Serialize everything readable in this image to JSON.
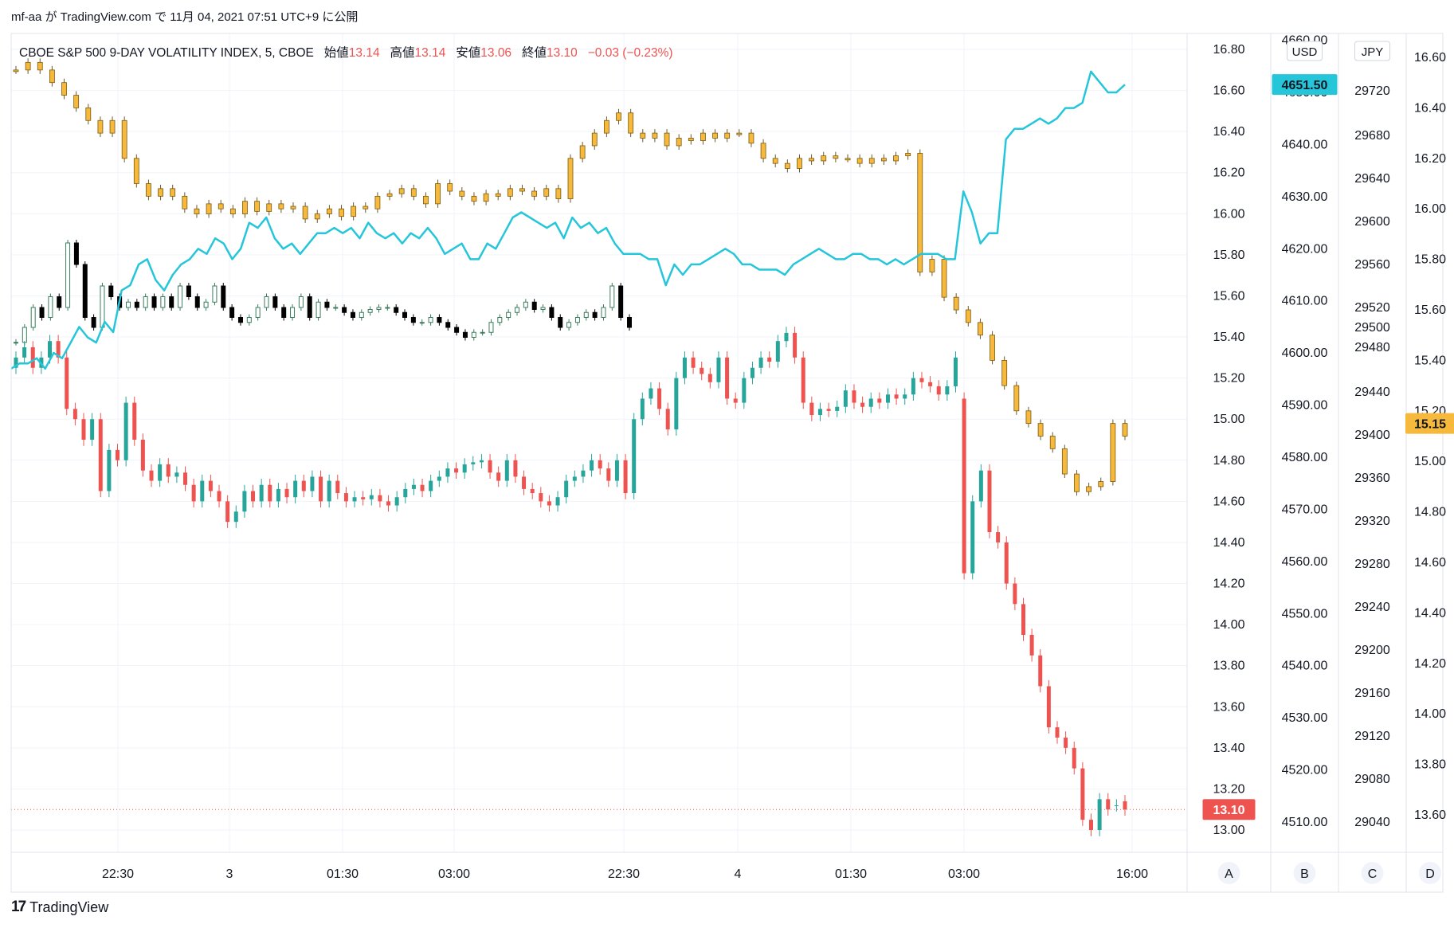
{
  "attribution": "mf-aa が TradingView.com で 11月 04, 2021 07:51 UTC+9 に公開",
  "legend": {
    "title": "CBOE S&P 500 9-DAY VOLATILITY INDEX, 5, CBOE",
    "open_label": "始値",
    "open_value": "13.14",
    "high_label": "高値",
    "high_value": "13.14",
    "low_label": "安値",
    "low_value": "13.06",
    "close_label": "終値",
    "close_value": "13.10",
    "change": "−0.03 (−0.23%)"
  },
  "footer": {
    "logo_mark": "17",
    "logo_text": "TradingView"
  },
  "chart_data": {
    "type": "candlestick+line",
    "x_ticks": [
      "22:30",
      "3",
      "01:30",
      "03:00",
      "22:30",
      "4",
      "01:30",
      "03:00",
      "16:00"
    ],
    "scale_labels": [
      "A",
      "B",
      "C",
      "D"
    ],
    "scales": {
      "A": {
        "range": [
          12.95,
          16.9
        ],
        "ticks": [
          "16.80",
          "16.60",
          "16.40",
          "16.20",
          "16.00",
          "15.80",
          "15.60",
          "15.40",
          "15.20",
          "15.00",
          "14.80",
          "14.60",
          "14.40",
          "14.20",
          "14.00",
          "13.80",
          "13.60",
          "13.40",
          "13.20",
          "13.00"
        ],
        "last_value": "13.10",
        "last_color": "#ef5350"
      },
      "B": {
        "currency": "USD",
        "range": [
          4507.5,
          4661
        ],
        "ticks": [
          "4660.00",
          "4650.00",
          "4640.00",
          "4630.00",
          "4620.00",
          "4610.00",
          "4600.00",
          "4590.00",
          "4580.00",
          "4570.00",
          "4560.00",
          "4550.00",
          "4540.00",
          "4530.00",
          "4520.00",
          "4510.00"
        ],
        "last_value": "4651.50",
        "last_color": "#26c6da"
      },
      "C": {
        "currency": "JPY",
        "ticks": [
          "29720",
          "29680",
          "29640",
          "29600",
          "29560",
          "29520",
          "29500",
          "29480",
          "29440",
          "29400",
          "29360",
          "29320",
          "29280",
          "29240",
          "29200",
          "29160",
          "29120",
          "29080",
          "29040"
        ]
      },
      "D": {
        "range": [
          13.45,
          16.7
        ],
        "ticks": [
          "16.60",
          "16.40",
          "16.20",
          "16.00",
          "15.80",
          "15.60",
          "15.40",
          "15.20",
          "15.00",
          "14.80",
          "14.60",
          "14.40",
          "14.20",
          "14.00",
          "13.80",
          "13.60"
        ],
        "last_value": "15.15",
        "last_color": "#f6b93b"
      }
    },
    "series": [
      {
        "name": "CBOE S&P 500 9-DAY VOLATILITY INDEX, 5, CBOE",
        "style": "candles",
        "scale": "A",
        "up_color": "#26a69a",
        "down_color": "#ef5350",
        "close": [
          15.3,
          15.35,
          15.25,
          15.3,
          15.38,
          15.3,
          15.05,
          15.0,
          14.9,
          15.0,
          14.65,
          14.85,
          14.8,
          15.08,
          14.9,
          14.75,
          14.7,
          14.78,
          14.72,
          14.74,
          14.68,
          14.6,
          14.7,
          14.65,
          14.6,
          14.5,
          14.55,
          14.65,
          14.6,
          14.68,
          14.6,
          14.66,
          14.62,
          14.7,
          14.65,
          14.72,
          14.6,
          14.7,
          14.64,
          14.6,
          14.62,
          14.61,
          14.63,
          14.6,
          14.58,
          14.62,
          14.66,
          14.68,
          14.65,
          14.7,
          14.72,
          14.76,
          14.74,
          14.78,
          14.79,
          14.8,
          14.74,
          14.7,
          14.8,
          14.72,
          14.66,
          14.64,
          14.6,
          14.58,
          14.62,
          14.7,
          14.72,
          14.75,
          14.8,
          14.76,
          14.7,
          14.8,
          14.64,
          15.0,
          15.1,
          15.15,
          15.05,
          14.95,
          15.2,
          15.3,
          15.25,
          15.22,
          15.18,
          15.3,
          15.1,
          15.08,
          15.2,
          15.25,
          15.3,
          15.28,
          15.38,
          15.42,
          15.3,
          15.08,
          15.02,
          15.05,
          15.04,
          15.06,
          15.14,
          15.08,
          15.06,
          15.1,
          15.08,
          15.12,
          15.1,
          15.12,
          15.2,
          15.18,
          15.16,
          15.12,
          15.16,
          15.3,
          14.25,
          14.6,
          14.75,
          14.45,
          14.4,
          14.2,
          14.1,
          13.95,
          13.85,
          13.7,
          13.5,
          13.45,
          13.4,
          13.3,
          13.05,
          13.0,
          13.15,
          13.1,
          13.12,
          13.1
        ],
        "open": [
          15.25,
          15.3,
          15.35,
          15.25,
          15.3,
          15.38,
          15.3,
          15.05,
          15.0,
          14.9,
          15.0,
          14.65,
          14.85,
          14.8,
          15.08,
          14.9,
          14.75,
          14.7,
          14.78,
          14.72,
          14.74,
          14.68,
          14.6,
          14.7,
          14.65,
          14.6,
          14.5,
          14.55,
          14.65,
          14.6,
          14.68,
          14.6,
          14.66,
          14.62,
          14.7,
          14.65,
          14.72,
          14.6,
          14.7,
          14.64,
          14.6,
          14.62,
          14.61,
          14.63,
          14.6,
          14.58,
          14.62,
          14.66,
          14.68,
          14.65,
          14.7,
          14.72,
          14.76,
          14.74,
          14.78,
          14.79,
          14.8,
          14.74,
          14.7,
          14.8,
          14.72,
          14.66,
          14.64,
          14.6,
          14.58,
          14.62,
          14.7,
          14.72,
          14.75,
          14.8,
          14.76,
          14.7,
          14.8,
          14.64,
          15.0,
          15.1,
          15.15,
          15.05,
          14.95,
          15.2,
          15.3,
          15.25,
          15.22,
          15.18,
          15.3,
          15.1,
          15.08,
          15.2,
          15.25,
          15.3,
          15.28,
          15.38,
          15.42,
          15.3,
          15.08,
          15.02,
          15.05,
          15.04,
          15.06,
          15.14,
          15.08,
          15.06,
          15.1,
          15.08,
          15.12,
          15.1,
          15.12,
          15.2,
          15.18,
          15.16,
          15.12,
          15.16,
          15.1,
          14.25,
          14.6,
          14.75,
          14.45,
          14.4,
          14.2,
          14.1,
          13.95,
          13.85,
          13.7,
          13.5,
          13.45,
          13.4,
          13.3,
          13.05,
          13.0,
          13.15,
          13.12,
          13.14
        ]
      },
      {
        "name": "",
        "style": "line",
        "scale": "B",
        "color": "#26c6da",
        "values": [
          4597,
          4598,
          4598,
          4599,
          4597,
          4600,
          4599,
          4602,
          4605,
          4603,
          4602,
          4606,
          4604,
          4612,
          4613,
          4617,
          4618,
          4614,
          4612,
          4615,
          4617,
          4618,
          4620,
          4619,
          4622,
          4621,
          4618,
          4620,
          4625,
          4624,
          4626,
          4622,
          4620,
          4621,
          4619,
          4621,
          4623,
          4623,
          4624,
          4623,
          4624,
          4622,
          4625,
          4623,
          4622,
          4623,
          4621,
          4623,
          4622,
          4624,
          4622,
          4619,
          4620,
          4621,
          4618,
          4618,
          4621,
          4620,
          4623,
          4626,
          4627,
          4626,
          4625,
          4624,
          4625,
          4622,
          4626,
          4624,
          4625,
          4623,
          4624,
          4621,
          4619,
          4619,
          4619,
          4618,
          4618,
          4613,
          4617,
          4615,
          4617,
          4617,
          4618,
          4619,
          4620,
          4619,
          4617,
          4617,
          4616,
          4616,
          4616,
          4615,
          4617,
          4618,
          4619,
          4620,
          4619,
          4618,
          4618,
          4619,
          4619,
          4618,
          4618,
          4617,
          4618,
          4617,
          4618,
          4619,
          4619,
          4619,
          4618,
          4618,
          4631,
          4627,
          4621,
          4623,
          4623,
          4641,
          4643,
          4643,
          4644,
          4645,
          4644,
          4645,
          4647,
          4647,
          4648,
          4654,
          4652,
          4650,
          4650,
          4651.5
        ]
      },
      {
        "name": "",
        "style": "hollow-candles",
        "scale": "C",
        "up_color": "#3a7d5c",
        "down_color": "#000000",
        "close": [
          29485,
          29500,
          29520,
          29510,
          29530,
          29520,
          29580,
          29560,
          29510,
          29500,
          29540,
          29530,
          29520,
          29525,
          29520,
          29530,
          29520,
          29530,
          29520,
          29540,
          29530,
          29520,
          29525,
          29540,
          29520,
          29510,
          29505,
          29510,
          29520,
          29530,
          29520,
          29510,
          29520,
          29530,
          29510,
          29525,
          29520,
          29520,
          29515,
          29510,
          29515,
          29518,
          29520,
          29520,
          29515,
          29510,
          29505,
          29505,
          29510,
          29505,
          29500,
          29495,
          29490,
          29495,
          29495,
          29505,
          29510,
          29515,
          29520,
          29525,
          29518,
          29520,
          29510,
          29500,
          29505,
          29510,
          29515,
          29510,
          29520,
          29540,
          29510,
          29500
        ]
      },
      {
        "name": "",
        "style": "candles",
        "scale": "D",
        "up_color": "#f6b93b",
        "down_color": "#f6b93b",
        "close": [
          16.55,
          16.58,
          16.55,
          16.5,
          16.45,
          16.4,
          16.35,
          16.3,
          16.35,
          16.2,
          16.1,
          16.05,
          16.08,
          16.05,
          16.0,
          15.98,
          16.02,
          16.0,
          15.98,
          16.03,
          15.99,
          16.02,
          16.0,
          16.01,
          15.96,
          15.98,
          16.0,
          15.97,
          16.01,
          16.0,
          16.05,
          16.06,
          16.08,
          16.05,
          16.02,
          16.1,
          16.07,
          16.05,
          16.03,
          16.06,
          16.05,
          16.08,
          16.07,
          16.05,
          16.08,
          16.04,
          16.2,
          16.25,
          16.3,
          16.35,
          16.38,
          16.3,
          16.28,
          16.3,
          16.25,
          16.28,
          16.27,
          16.3,
          16.28,
          16.3,
          16.3,
          16.26,
          16.2,
          16.18,
          16.16,
          16.2,
          16.19,
          16.21,
          16.2,
          16.2,
          16.18,
          16.2,
          16.19,
          16.21,
          16.22,
          15.75,
          15.8,
          15.65,
          15.6,
          15.55,
          15.5,
          15.4,
          15.3,
          15.2,
          15.15,
          15.1,
          15.05,
          14.95,
          14.88,
          14.9,
          14.92,
          15.15,
          15.1
        ]
      }
    ]
  }
}
